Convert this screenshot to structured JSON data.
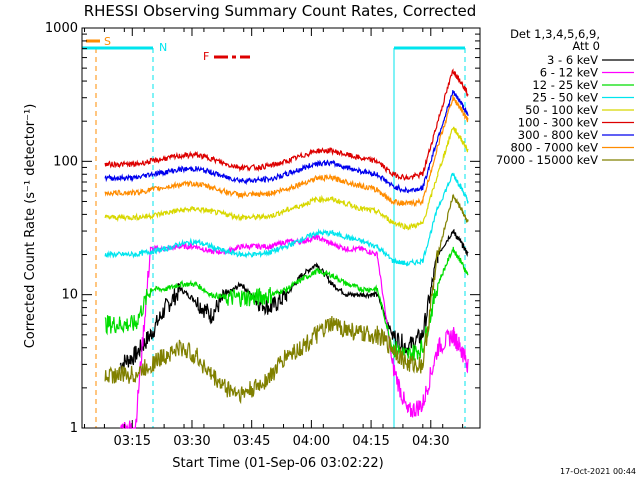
{
  "chart_data": {
    "type": "line",
    "title": "RHESSI Observing Summary Count Rates, Corrected",
    "xlabel": "Start Time (01-Sep-06 03:02:22)",
    "ylabel": "Corrected Count Rate (s⁻¹ detector⁻¹)",
    "yscale": "log",
    "ylim": [
      1,
      1000
    ],
    "xlim_minutes": [
      0,
      100
    ],
    "x_ticks": [
      "03:15",
      "03:30",
      "03:45",
      "04:00",
      "04:15",
      "04:30"
    ],
    "y_ticks": [
      "1",
      "10",
      "100",
      "1000"
    ],
    "legend_header": [
      "Det 1,3,4,5,6,9,",
      "Att 0"
    ],
    "legend_position": "right",
    "timestamp": "17-Oct-2021 00:44",
    "flags": {
      "S": {
        "label": "S",
        "color": "#ff8c00"
      },
      "N": {
        "label": "N",
        "color": "#00e5ee"
      },
      "F": {
        "label": "F",
        "color": "#dd0000"
      }
    },
    "x_minutes": [
      4,
      8,
      12,
      16,
      20,
      24,
      28,
      32,
      36,
      40,
      44,
      48,
      52,
      56,
      60,
      64,
      68,
      72,
      76,
      80,
      84,
      88,
      92,
      96,
      98,
      100
    ],
    "series": [
      {
        "name": "3 - 6 keV",
        "color": "#000000",
        "values": [
          null,
          3,
          3.5,
          5,
          8,
          11,
          9,
          7,
          10,
          12,
          9,
          8,
          10,
          14,
          17,
          12,
          10,
          10,
          10,
          5,
          4,
          5,
          20,
          30,
          25,
          20
        ]
      },
      {
        "name": "6 - 12 keV",
        "color": "#ff00ff",
        "values": [
          null,
          1,
          1,
          22,
          22,
          23,
          23,
          21,
          21,
          23,
          23,
          23,
          25,
          25,
          27,
          24,
          22,
          22,
          20,
          3,
          1.3,
          1.5,
          4,
          5,
          4,
          3
        ]
      },
      {
        "name": "12 - 25 keV",
        "color": "#00dd00",
        "values": [
          6,
          6,
          6,
          11,
          11,
          12,
          12,
          10,
          9.5,
          9.5,
          9.5,
          10,
          11,
          13,
          15,
          14,
          12,
          11,
          11,
          4,
          3.5,
          4,
          12,
          22,
          18,
          14
        ]
      },
      {
        "name": "25 - 50 keV",
        "color": "#00e5ee",
        "values": [
          20,
          20,
          20,
          21,
          22,
          24,
          25,
          23,
          21,
          20,
          20,
          21,
          23,
          26,
          29,
          29,
          27,
          25,
          23,
          18,
          17,
          18,
          45,
          80,
          65,
          50
        ]
      },
      {
        "name": "50 - 100 keV",
        "color": "#d8d800",
        "values": [
          38,
          38,
          38,
          39,
          41,
          43,
          44,
          42,
          40,
          38,
          38,
          39,
          43,
          47,
          52,
          52,
          48,
          44,
          42,
          35,
          32,
          34,
          80,
          180,
          150,
          120
        ]
      },
      {
        "name": "100 - 300 keV",
        "color": "#dd0000",
        "values": [
          95,
          95,
          95,
          100,
          105,
          110,
          112,
          105,
          95,
          90,
          90,
          93,
          100,
          110,
          120,
          120,
          112,
          105,
          100,
          80,
          75,
          80,
          200,
          480,
          400,
          320
        ]
      },
      {
        "name": "300 - 800 keV",
        "color": "#0000ee",
        "values": [
          75,
          75,
          75,
          80,
          83,
          87,
          88,
          83,
          76,
          72,
          72,
          74,
          80,
          88,
          97,
          97,
          90,
          84,
          80,
          65,
          60,
          63,
          150,
          330,
          280,
          220
        ]
      },
      {
        "name": "800 - 7000 keV",
        "color": "#ff8c00",
        "values": [
          58,
          58,
          58,
          61,
          64,
          67,
          68,
          64,
          59,
          56,
          56,
          58,
          62,
          68,
          75,
          75,
          70,
          65,
          61,
          50,
          48,
          50,
          130,
          300,
          250,
          200
        ]
      },
      {
        "name": "7000 - 15000 keV",
        "color": "#808000",
        "values": [
          2.5,
          2.5,
          2.5,
          3,
          3.5,
          4,
          3.5,
          2.5,
          2,
          1.8,
          2,
          2.5,
          3.5,
          4,
          5,
          6,
          5.5,
          5,
          5,
          4,
          3,
          3,
          20,
          55,
          45,
          35
        ]
      }
    ]
  }
}
